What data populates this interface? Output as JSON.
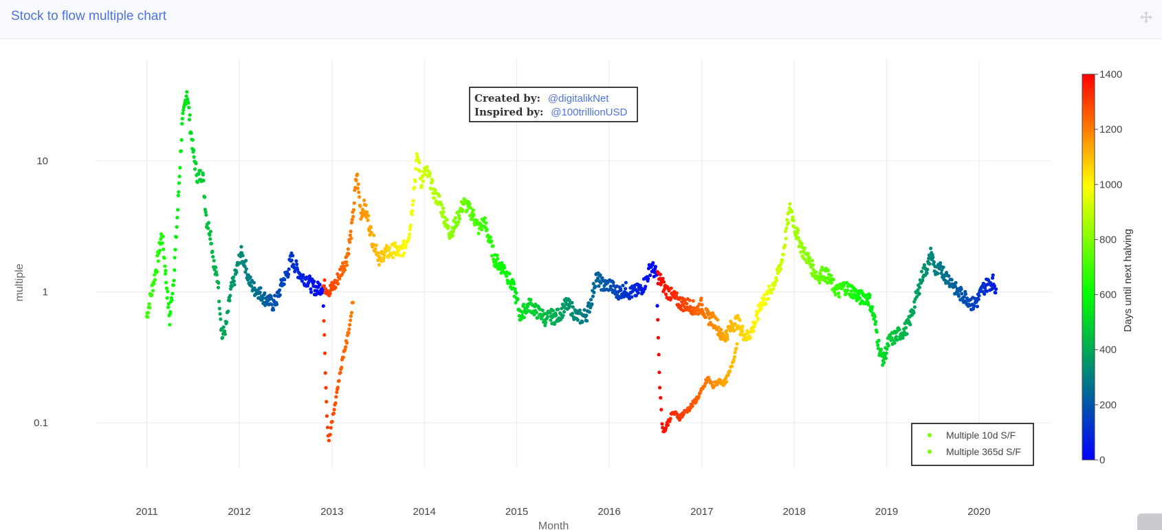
{
  "header": {
    "title": "Stock to flow multiple chart",
    "move_icon": "move-icon"
  },
  "annotation": {
    "created_label": "Created by:",
    "created_handle": "@digitalikNet",
    "inspired_label": "Inspired by:",
    "inspired_handle": "@100trillionUSD"
  },
  "chart_data": {
    "type": "scatter",
    "xlabel": "Month",
    "ylabel": "multiple",
    "y_scale": "log",
    "ylim": [
      0.045,
      60
    ],
    "xlim": [
      "2010-06-15",
      "2020-10-15"
    ],
    "x_ticks": [
      "2011",
      "2012",
      "2013",
      "2014",
      "2015",
      "2016",
      "2017",
      "2018",
      "2019",
      "2020"
    ],
    "y_ticks": [
      {
        "value": 0.1,
        "label": "0.1"
      },
      {
        "value": 1,
        "label": "1"
      },
      {
        "value": 10,
        "label": "10"
      }
    ],
    "grid": true,
    "legend_position": "bottom-right",
    "legend": [
      "Multiple 10d S/F",
      "Multiple 365d S/F"
    ],
    "legend_color": "#7cfc00",
    "colorbar": {
      "title": "Days until next halving",
      "min": 0,
      "max": 1400,
      "ticks": [
        "0",
        "200",
        "400",
        "600",
        "800",
        "1000",
        "1200",
        "1400"
      ],
      "colors": [
        "#0000ff",
        "#00ff00",
        "#ffff00",
        "#ff0000"
      ]
    },
    "halvings": [
      "2012-11-28",
      "2016-07-09",
      "2020-05-11"
    ],
    "series": [
      {
        "name": "Multiple 365d S/F",
        "points": [
          [
            "2011-01-01",
            0.65
          ],
          [
            "2011-01-20",
            1.0
          ],
          [
            "2011-02-10",
            1.6
          ],
          [
            "2011-03-01",
            2.8
          ],
          [
            "2011-03-15",
            1.5
          ],
          [
            "2011-04-01",
            0.6
          ],
          [
            "2011-04-20",
            1.5
          ],
          [
            "2011-05-05",
            5
          ],
          [
            "2011-05-20",
            18
          ],
          [
            "2011-06-08",
            35
          ],
          [
            "2011-06-20",
            20
          ],
          [
            "2011-07-05",
            11
          ],
          [
            "2011-07-20",
            7.5
          ],
          [
            "2011-08-10",
            8
          ],
          [
            "2011-08-25",
            3.5
          ],
          [
            "2011-09-10",
            2.8
          ],
          [
            "2011-09-25",
            1.5
          ],
          [
            "2011-10-10",
            1.2
          ],
          [
            "2011-10-25",
            0.45
          ],
          [
            "2011-11-10",
            0.55
          ],
          [
            "2011-11-28",
            1.0
          ],
          [
            "2011-12-15",
            1.3
          ],
          [
            "2012-01-08",
            2.0
          ],
          [
            "2012-01-25",
            1.6
          ],
          [
            "2012-02-10",
            1.2
          ],
          [
            "2012-03-01",
            1.05
          ],
          [
            "2012-03-20",
            1.0
          ],
          [
            "2012-04-08",
            0.9
          ],
          [
            "2012-04-28",
            0.85
          ],
          [
            "2012-05-15",
            0.8
          ],
          [
            "2012-06-01",
            0.9
          ],
          [
            "2012-06-20",
            1.2
          ],
          [
            "2012-07-10",
            1.4
          ],
          [
            "2012-07-25",
            1.8
          ],
          [
            "2012-08-15",
            1.5
          ],
          [
            "2012-09-05",
            1.3
          ],
          [
            "2012-09-25",
            1.25
          ],
          [
            "2012-10-15",
            1.1
          ],
          [
            "2012-11-05",
            1.05
          ],
          [
            "2012-11-20",
            1.1
          ],
          [
            "2012-12-05",
            1.1
          ],
          [
            "2012-12-25",
            1.02
          ],
          [
            "2013-01-15",
            1.15
          ],
          [
            "2013-02-10",
            1.5
          ],
          [
            "2013-03-01",
            1.8
          ],
          [
            "2013-03-20",
            3.0
          ],
          [
            "2013-04-09",
            8.0
          ],
          [
            "2013-04-25",
            4.0
          ],
          [
            "2013-05-10",
            4.5
          ],
          [
            "2013-05-25",
            3.5
          ],
          [
            "2013-06-10",
            2.5
          ],
          [
            "2013-06-25",
            2.2
          ],
          [
            "2013-07-10",
            1.7
          ],
          [
            "2013-07-25",
            2.0
          ],
          [
            "2013-08-15",
            2.0
          ],
          [
            "2013-09-05",
            2.1
          ],
          [
            "2013-09-25",
            2.0
          ],
          [
            "2013-10-15",
            2.2
          ],
          [
            "2013-11-05",
            3.0
          ],
          [
            "2013-11-20",
            6.0
          ],
          [
            "2013-12-04",
            11.0
          ],
          [
            "2013-12-20",
            7.0
          ],
          [
            "2014-01-08",
            8.5
          ],
          [
            "2014-01-25",
            7.0
          ],
          [
            "2014-02-10",
            5.5
          ],
          [
            "2014-03-01",
            5.0
          ],
          [
            "2014-03-20",
            3.8
          ],
          [
            "2014-04-10",
            2.8
          ],
          [
            "2014-05-01",
            3.2
          ],
          [
            "2014-05-20",
            4.0
          ],
          [
            "2014-06-05",
            4.8
          ],
          [
            "2014-06-25",
            4.3
          ],
          [
            "2014-07-15",
            3.8
          ],
          [
            "2014-08-05",
            3.0
          ],
          [
            "2014-08-25",
            3.5
          ],
          [
            "2014-09-15",
            2.5
          ],
          [
            "2014-10-05",
            1.8
          ],
          [
            "2014-10-25",
            1.6
          ],
          [
            "2014-11-15",
            1.5
          ],
          [
            "2014-12-05",
            1.2
          ],
          [
            "2014-12-25",
            1.0
          ],
          [
            "2015-01-15",
            0.65
          ],
          [
            "2015-02-05",
            0.75
          ],
          [
            "2015-02-25",
            0.8
          ],
          [
            "2015-03-15",
            0.72
          ],
          [
            "2015-04-05",
            0.68
          ],
          [
            "2015-04-25",
            0.62
          ],
          [
            "2015-05-15",
            0.65
          ],
          [
            "2015-06-05",
            0.64
          ],
          [
            "2015-06-25",
            0.7
          ],
          [
            "2015-07-15",
            0.8
          ],
          [
            "2015-08-05",
            0.75
          ],
          [
            "2015-08-25",
            0.65
          ],
          [
            "2015-09-15",
            0.64
          ],
          [
            "2015-10-05",
            0.68
          ],
          [
            "2015-10-25",
            0.9
          ],
          [
            "2015-11-10",
            1.3
          ],
          [
            "2015-11-25",
            1.2
          ],
          [
            "2015-12-15",
            1.1
          ],
          [
            "2016-01-05",
            1.15
          ],
          [
            "2016-01-25",
            1.0
          ],
          [
            "2016-02-15",
            1.0
          ],
          [
            "2016-03-05",
            1.05
          ],
          [
            "2016-03-25",
            0.98
          ],
          [
            "2016-04-15",
            1.0
          ],
          [
            "2016-05-05",
            1.05
          ],
          [
            "2016-05-25",
            1.2
          ],
          [
            "2016-06-15",
            1.6
          ],
          [
            "2016-06-30",
            1.4
          ],
          [
            "2016-07-20",
            1.25
          ],
          [
            "2016-08-10",
            1.05
          ],
          [
            "2016-09-01",
            0.95
          ],
          [
            "2016-09-20",
            0.88
          ],
          [
            "2016-10-10",
            0.82
          ],
          [
            "2016-11-01",
            0.8
          ],
          [
            "2016-11-20",
            0.78
          ],
          [
            "2016-12-10",
            0.72
          ],
          [
            "2017-01-01",
            0.8
          ],
          [
            "2017-01-20",
            0.65
          ],
          [
            "2017-02-10",
            0.62
          ],
          [
            "2017-03-01",
            0.58
          ],
          [
            "2017-03-20",
            0.45
          ],
          [
            "2017-04-10",
            0.48
          ],
          [
            "2017-05-01",
            0.55
          ],
          [
            "2017-05-20",
            0.6
          ],
          [
            "2017-06-10",
            0.5
          ],
          [
            "2017-07-01",
            0.45
          ],
          [
            "2017-07-20",
            0.52
          ],
          [
            "2017-08-10",
            0.65
          ],
          [
            "2017-08-25",
            0.85
          ],
          [
            "2017-09-15",
            0.9
          ],
          [
            "2017-10-05",
            1.1
          ],
          [
            "2017-10-25",
            1.3
          ],
          [
            "2017-11-15",
            1.8
          ],
          [
            "2017-12-01",
            3.0
          ],
          [
            "2017-12-17",
            4.5
          ],
          [
            "2018-01-05",
            3.0
          ],
          [
            "2018-01-20",
            2.5
          ],
          [
            "2018-02-06",
            2.0
          ],
          [
            "2018-02-25",
            1.8
          ],
          [
            "2018-03-15",
            1.5
          ],
          [
            "2018-04-05",
            1.3
          ],
          [
            "2018-04-25",
            1.4
          ],
          [
            "2018-05-15",
            1.3
          ],
          [
            "2018-06-05",
            1.1
          ],
          [
            "2018-06-25",
            1.0
          ],
          [
            "2018-07-15",
            1.1
          ],
          [
            "2018-08-05",
            1.05
          ],
          [
            "2018-08-25",
            1.0
          ],
          [
            "2018-09-15",
            0.9
          ],
          [
            "2018-10-05",
            0.92
          ],
          [
            "2018-10-25",
            0.88
          ],
          [
            "2018-11-15",
            0.6
          ],
          [
            "2018-12-05",
            0.35
          ],
          [
            "2018-12-20",
            0.3
          ],
          [
            "2019-01-10",
            0.42
          ],
          [
            "2019-02-01",
            0.45
          ],
          [
            "2019-02-20",
            0.48
          ],
          [
            "2019-03-10",
            0.5
          ],
          [
            "2019-04-01",
            0.58
          ],
          [
            "2019-04-20",
            0.8
          ],
          [
            "2019-05-10",
            1.1
          ],
          [
            "2019-05-25",
            1.4
          ],
          [
            "2019-06-15",
            1.6
          ],
          [
            "2019-06-26",
            2.0
          ],
          [
            "2019-07-15",
            1.4
          ],
          [
            "2019-08-05",
            1.5
          ],
          [
            "2019-08-25",
            1.3
          ],
          [
            "2019-09-15",
            1.2
          ],
          [
            "2019-10-05",
            1.0
          ],
          [
            "2019-10-25",
            0.95
          ],
          [
            "2019-11-15",
            0.9
          ],
          [
            "2019-12-05",
            0.8
          ],
          [
            "2019-12-25",
            0.85
          ],
          [
            "2020-01-15",
            1.05
          ],
          [
            "2020-02-05",
            1.15
          ],
          [
            "2020-02-25",
            1.2
          ],
          [
            "2020-03-08",
            1.05
          ]
        ]
      },
      {
        "name": "Multiple 10d S/F",
        "points": [
          [
            "2012-11-28",
            0.8
          ],
          [
            "2012-12-02",
            0.45
          ],
          [
            "2012-12-06",
            0.25
          ],
          [
            "2012-12-10",
            0.15
          ],
          [
            "2012-12-15",
            0.09
          ],
          [
            "2012-12-20",
            0.075
          ],
          [
            "2012-12-28",
            0.09
          ],
          [
            "2013-01-08",
            0.12
          ],
          [
            "2013-01-20",
            0.17
          ],
          [
            "2013-02-01",
            0.23
          ],
          [
            "2013-02-15",
            0.33
          ],
          [
            "2013-03-01",
            0.42
          ],
          [
            "2013-03-15",
            0.6
          ],
          [
            "2013-03-28",
            0.95
          ],
          [
            "2016-07-09",
            0.8
          ],
          [
            "2016-07-13",
            0.45
          ],
          [
            "2016-07-17",
            0.25
          ],
          [
            "2016-07-22",
            0.15
          ],
          [
            "2016-07-28",
            0.1
          ],
          [
            "2016-08-05",
            0.085
          ],
          [
            "2016-08-20",
            0.1
          ],
          [
            "2016-09-10",
            0.12
          ],
          [
            "2016-10-05",
            0.11
          ],
          [
            "2016-10-25",
            0.12
          ],
          [
            "2016-11-15",
            0.13
          ],
          [
            "2016-12-10",
            0.15
          ],
          [
            "2017-01-05",
            0.18
          ],
          [
            "2017-01-25",
            0.22
          ],
          [
            "2017-02-15",
            0.19
          ],
          [
            "2017-03-10",
            0.21
          ],
          [
            "2017-04-01",
            0.2
          ],
          [
            "2017-04-20",
            0.24
          ],
          [
            "2017-05-05",
            0.3
          ],
          [
            "2017-05-20",
            0.4
          ]
        ]
      }
    ]
  }
}
